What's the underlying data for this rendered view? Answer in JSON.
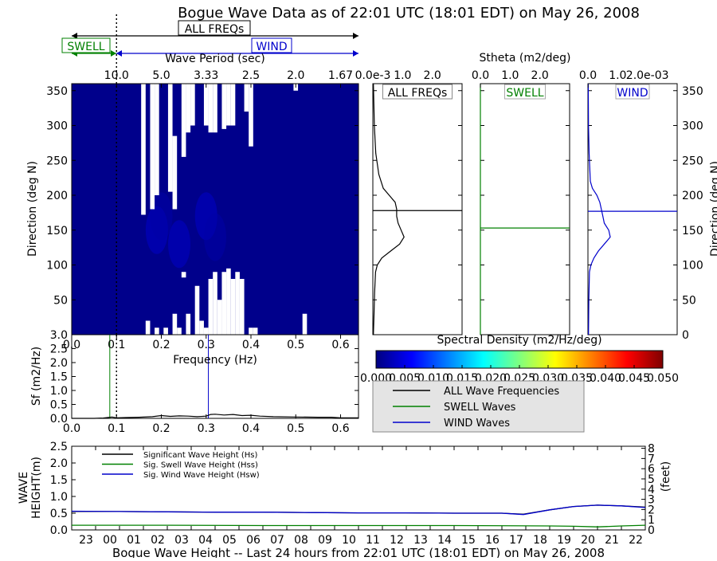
{
  "figure": {
    "title": "Bogue Wave Data as of 22:01 UTC (18:01 EDT) on May 26, 2008",
    "bracket_all": "ALL FREQs",
    "bracket_swell": "SWELL",
    "bracket_wind": "WIND"
  },
  "colors": {
    "black": "#000000",
    "swell": "#008000",
    "wind": "#0000cc",
    "heat_bg": "#00008b",
    "heat_light": "#0000a8",
    "heat_mid": "#0000c8",
    "missing": "#ffffff"
  },
  "chart_data": [
    {
      "id": "direction_heatmap",
      "type": "heatmap",
      "xlabel": "Frequency (Hz)",
      "ylabel": "Direction (deg N)",
      "top_xlabel": "Wave Period (sec)",
      "xlim": [
        0.0,
        0.64
      ],
      "ylim": [
        0,
        360
      ],
      "xticks": [
        0.0,
        0.1,
        0.2,
        0.3,
        0.4,
        0.5,
        0.6
      ],
      "xtick_labels": [
        "0.0",
        "0.1",
        "0.2",
        "0.3",
        "0.4",
        "0.5",
        "0.6"
      ],
      "yticks": [
        50,
        100,
        150,
        200,
        250,
        300,
        350
      ],
      "ytick_labels": [
        "50",
        "100",
        "150",
        "200",
        "250",
        "300",
        "350"
      ],
      "top_ticks": [
        0.1,
        0.2,
        0.3,
        0.4,
        0.5,
        0.6
      ],
      "top_tick_labels": [
        "10.0",
        "5.0",
        "3.33",
        "2.5",
        "2.0",
        "1.67"
      ],
      "swell_wind_separation_hz": 0.1,
      "missing_spans": [
        {
          "f": [
            0.155,
            0.165
          ],
          "dir": [
            172,
            360
          ]
        },
        {
          "f": [
            0.165,
            0.175
          ],
          "dir": [
            0,
            20
          ]
        },
        {
          "f": [
            0.175,
            0.185
          ],
          "dir": [
            180,
            360
          ]
        },
        {
          "f": [
            0.185,
            0.195
          ],
          "dir": [
            0,
            10
          ]
        },
        {
          "f": [
            0.185,
            0.195
          ],
          "dir": [
            200,
            360
          ]
        },
        {
          "f": [
            0.205,
            0.215
          ],
          "dir": [
            0,
            10
          ]
        },
        {
          "f": [
            0.215,
            0.225
          ],
          "dir": [
            205,
            360
          ]
        },
        {
          "f": [
            0.225,
            0.235
          ],
          "dir": [
            0,
            30
          ]
        },
        {
          "f": [
            0.225,
            0.235
          ],
          "dir": [
            180,
            285
          ]
        },
        {
          "f": [
            0.235,
            0.245
          ],
          "dir": [
            0,
            10
          ]
        },
        {
          "f": [
            0.245,
            0.255
          ],
          "dir": [
            82,
            90
          ]
        },
        {
          "f": [
            0.245,
            0.255
          ],
          "dir": [
            255,
            360
          ]
        },
        {
          "f": [
            0.255,
            0.265
          ],
          "dir": [
            0,
            30
          ]
        },
        {
          "f": [
            0.255,
            0.265
          ],
          "dir": [
            290,
            360
          ]
        },
        {
          "f": [
            0.265,
            0.275
          ],
          "dir": [
            300,
            360
          ]
        },
        {
          "f": [
            0.275,
            0.285
          ],
          "dir": [
            0,
            70
          ]
        },
        {
          "f": [
            0.285,
            0.295
          ],
          "dir": [
            0,
            20
          ]
        },
        {
          "f": [
            0.295,
            0.305
          ],
          "dir": [
            0,
            10
          ]
        },
        {
          "f": [
            0.295,
            0.305
          ],
          "dir": [
            300,
            360
          ]
        },
        {
          "f": [
            0.305,
            0.315
          ],
          "dir": [
            0,
            80
          ]
        },
        {
          "f": [
            0.305,
            0.315
          ],
          "dir": [
            290,
            360
          ]
        },
        {
          "f": [
            0.315,
            0.325
          ],
          "dir": [
            0,
            90
          ]
        },
        {
          "f": [
            0.315,
            0.325
          ],
          "dir": [
            290,
            360
          ]
        },
        {
          "f": [
            0.325,
            0.335
          ],
          "dir": [
            0,
            50
          ]
        },
        {
          "f": [
            0.335,
            0.345
          ],
          "dir": [
            0,
            90
          ]
        },
        {
          "f": [
            0.335,
            0.345
          ],
          "dir": [
            295,
            360
          ]
        },
        {
          "f": [
            0.345,
            0.355
          ],
          "dir": [
            0,
            95
          ]
        },
        {
          "f": [
            0.345,
            0.355
          ],
          "dir": [
            300,
            360
          ]
        },
        {
          "f": [
            0.355,
            0.365
          ],
          "dir": [
            0,
            80
          ]
        },
        {
          "f": [
            0.355,
            0.365
          ],
          "dir": [
            300,
            360
          ]
        },
        {
          "f": [
            0.365,
            0.375
          ],
          "dir": [
            0,
            90
          ]
        },
        {
          "f": [
            0.375,
            0.385
          ],
          "dir": [
            0,
            80
          ]
        },
        {
          "f": [
            0.385,
            0.395
          ],
          "dir": [
            320,
            360
          ]
        },
        {
          "f": [
            0.395,
            0.405
          ],
          "dir": [
            0,
            10
          ]
        },
        {
          "f": [
            0.395,
            0.405
          ],
          "dir": [
            270,
            360
          ]
        },
        {
          "f": [
            0.405,
            0.415
          ],
          "dir": [
            0,
            10
          ]
        },
        {
          "f": [
            0.515,
            0.525
          ],
          "dir": [
            0,
            30
          ]
        },
        {
          "f": [
            0.495,
            0.505
          ],
          "dir": [
            350,
            360
          ]
        }
      ],
      "energy_blobs": [
        {
          "f": 0.19,
          "dir": 150,
          "level": 2
        },
        {
          "f": 0.2,
          "dir": 170,
          "level": 1
        },
        {
          "f": 0.24,
          "dir": 130,
          "level": 2
        },
        {
          "f": 0.3,
          "dir": 170,
          "level": 2
        },
        {
          "f": 0.32,
          "dir": 140,
          "level": 1
        }
      ]
    },
    {
      "id": "one_dimensional_spectrum",
      "type": "line",
      "xlabel": "Frequency (Hz)",
      "ylabel": "Sf (m2/Hz)",
      "xlim": [
        0.0,
        0.64
      ],
      "ylim": [
        0.0,
        3.0
      ],
      "xticks": [
        0.0,
        0.1,
        0.2,
        0.3,
        0.4,
        0.5,
        0.6
      ],
      "xtick_labels": [
        "0.0",
        "0.1",
        "0.2",
        "0.3",
        "0.4",
        "0.5",
        "0.6"
      ],
      "yticks": [
        0.0,
        0.5,
        1.0,
        1.5,
        2.0,
        2.5,
        3.0
      ],
      "ytick_labels": [
        "0.0",
        "0.5",
        "1.0",
        "1.5",
        "2.0",
        "2.5",
        "3.0"
      ],
      "swell_peak_hz": 0.085,
      "wind_peak_hz": 0.305,
      "separation_hz": 0.1,
      "x": [
        0.0,
        0.05,
        0.07,
        0.08,
        0.09,
        0.1,
        0.12,
        0.15,
        0.18,
        0.2,
        0.22,
        0.24,
        0.26,
        0.28,
        0.3,
        0.31,
        0.32,
        0.34,
        0.36,
        0.38,
        0.4,
        0.42,
        0.45,
        0.5,
        0.55,
        0.58,
        0.6,
        0.64
      ],
      "y": [
        0.0,
        0.0,
        0.01,
        0.03,
        0.05,
        0.02,
        0.03,
        0.04,
        0.06,
        0.1,
        0.07,
        0.09,
        0.08,
        0.06,
        0.08,
        0.14,
        0.15,
        0.12,
        0.14,
        0.1,
        0.11,
        0.08,
        0.06,
        0.05,
        0.04,
        0.04,
        0.02,
        0.02
      ]
    },
    {
      "id": "stheta_all",
      "type": "line",
      "axis_title": "Stheta (m2/deg)",
      "label": "ALL FREQs",
      "xlim": [
        0.0,
        3.0
      ],
      "ylim": [
        0,
        360
      ],
      "xticks": [
        1.0,
        2.0
      ],
      "xtick_labels": [
        "1.0",
        "2.0"
      ],
      "x_offset_text": "0.0e-3",
      "mean_direction": 178,
      "y": [
        0,
        30,
        60,
        90,
        100,
        110,
        120,
        130,
        140,
        150,
        160,
        170,
        180,
        190,
        200,
        210,
        230,
        260,
        300,
        360
      ],
      "x": [
        0.02,
        0.04,
        0.06,
        0.09,
        0.15,
        0.3,
        0.6,
        0.9,
        1.05,
        0.95,
        0.85,
        0.8,
        0.8,
        0.75,
        0.55,
        0.35,
        0.2,
        0.1,
        0.05,
        0.02
      ]
    },
    {
      "id": "stheta_swell",
      "type": "line",
      "label": "SWELL",
      "xlim": [
        0.0,
        3.0
      ],
      "ylim": [
        0,
        360
      ],
      "xticks": [
        0.0,
        1.0,
        2.0
      ],
      "xtick_labels": [
        "0.0",
        "1.0",
        "2.0"
      ],
      "mean_direction": 153,
      "y": [
        0,
        360
      ],
      "x": [
        0.0,
        0.0
      ]
    },
    {
      "id": "stheta_wind",
      "type": "line",
      "label": "WIND",
      "xlim": [
        0.0,
        3.0
      ],
      "ylim": [
        0,
        360
      ],
      "xticks": [
        0.0,
        1.0,
        2.0
      ],
      "xtick_labels": [
        "0.0",
        "1.0",
        "2.0e-03"
      ],
      "mean_direction": 177,
      "y": [
        0,
        50,
        90,
        100,
        110,
        120,
        130,
        140,
        150,
        160,
        170,
        180,
        190,
        200,
        210,
        220,
        260,
        300,
        360
      ],
      "x": [
        0.02,
        0.03,
        0.05,
        0.1,
        0.2,
        0.35,
        0.55,
        0.75,
        0.7,
        0.55,
        0.5,
        0.45,
        0.4,
        0.3,
        0.15,
        0.08,
        0.04,
        0.02,
        0.01
      ]
    },
    {
      "id": "colorbar",
      "type": "heatmap",
      "label": "Spectral Density (m2/Hz/deg)",
      "range": [
        0.0,
        0.05
      ],
      "ticks": [
        0.0,
        0.005,
        0.01,
        0.015,
        0.02,
        0.025,
        0.03,
        0.035,
        0.04,
        0.045,
        0.05
      ],
      "tick_labels": [
        "0.000",
        "0.005",
        "0.010",
        "0.015",
        "0.020",
        "0.025",
        "0.030",
        "0.035",
        "0.040",
        "0.045",
        "0.050"
      ],
      "colormap": [
        "#00007f",
        "#0000ff",
        "#007fff",
        "#00ffff",
        "#7fff7f",
        "#ffff00",
        "#ff7f00",
        "#ff0000",
        "#7f0000"
      ]
    },
    {
      "id": "legend_spectra",
      "type": "line",
      "entries": [
        {
          "label": "ALL Wave Frequencies",
          "color": "#000000"
        },
        {
          "label": "SWELL Waves",
          "color": "#008000"
        },
        {
          "label": "WIND Waves",
          "color": "#0000cc"
        }
      ]
    },
    {
      "id": "wave_height",
      "type": "line",
      "xlabel": "Bogue Wave Height -- Last 24 hours from 22:01 UTC (18:01 EDT) on May 26, 2008",
      "ylabel": "WAVE HEIGHT(m)",
      "ylabel_right": "(feet)",
      "ylim": [
        0.0,
        2.5
      ],
      "ylim_right": [
        0,
        8.2
      ],
      "yticks": [
        0.0,
        0.5,
        1.0,
        1.5,
        2.0,
        2.5
      ],
      "ytick_labels": [
        "0.0",
        "0.5",
        "1.0",
        "1.5",
        "2.0",
        "2.5"
      ],
      "yticks_right": [
        0,
        1,
        2,
        3,
        4,
        5,
        6,
        7,
        8
      ],
      "ytick_labels_right": [
        "0",
        "1",
        "2",
        "3",
        "4",
        "5",
        "6",
        "7",
        "8"
      ],
      "xlim": [
        0,
        24
      ],
      "xticks": [
        1,
        2,
        3,
        4,
        5,
        6,
        7,
        8,
        9,
        10,
        11,
        12,
        13,
        14,
        15,
        16,
        17,
        18,
        19,
        20,
        21,
        22,
        23,
        24
      ],
      "xtick_labels": [
        "23",
        "00",
        "01",
        "02",
        "03",
        "04",
        "05",
        "06",
        "07",
        "08",
        "09",
        "10",
        "11",
        "12",
        "13",
        "14",
        "15",
        "16",
        "17",
        "18",
        "19",
        "20",
        "21",
        "22"
      ],
      "legend": [
        "Significant Wave Height (Hs)",
        "Sig. Swell Wave Height (Hss)",
        "Sig. Wind Wave Height (Hsw)"
      ],
      "series": [
        {
          "name": "Significant Wave Height (Hs)",
          "color": "#000000",
          "x": [
            0,
            2,
            4,
            6,
            8,
            10,
            12,
            14,
            16,
            18,
            18.9,
            20,
            21,
            22,
            23,
            24
          ],
          "y": [
            0.55,
            0.55,
            0.54,
            0.53,
            0.53,
            0.52,
            0.51,
            0.51,
            0.5,
            0.5,
            0.47,
            0.6,
            0.7,
            0.74,
            0.72,
            0.68
          ]
        },
        {
          "name": "Sig. Swell Wave Height (Hss)",
          "color": "#008000",
          "x": [
            0,
            4,
            8,
            12,
            16,
            20,
            21,
            22,
            23,
            24
          ],
          "y": [
            0.14,
            0.14,
            0.13,
            0.13,
            0.13,
            0.12,
            0.11,
            0.09,
            0.12,
            0.14
          ]
        },
        {
          "name": "Sig. Wind Wave Height (Hsw)",
          "color": "#0000cc",
          "x": [
            0,
            2,
            4,
            6,
            8,
            10,
            12,
            14,
            16,
            18,
            18.9,
            20,
            21,
            22,
            23,
            24
          ],
          "y": [
            0.56,
            0.55,
            0.54,
            0.53,
            0.53,
            0.52,
            0.51,
            0.51,
            0.5,
            0.5,
            0.46,
            0.6,
            0.7,
            0.74,
            0.72,
            0.67
          ]
        }
      ]
    }
  ]
}
